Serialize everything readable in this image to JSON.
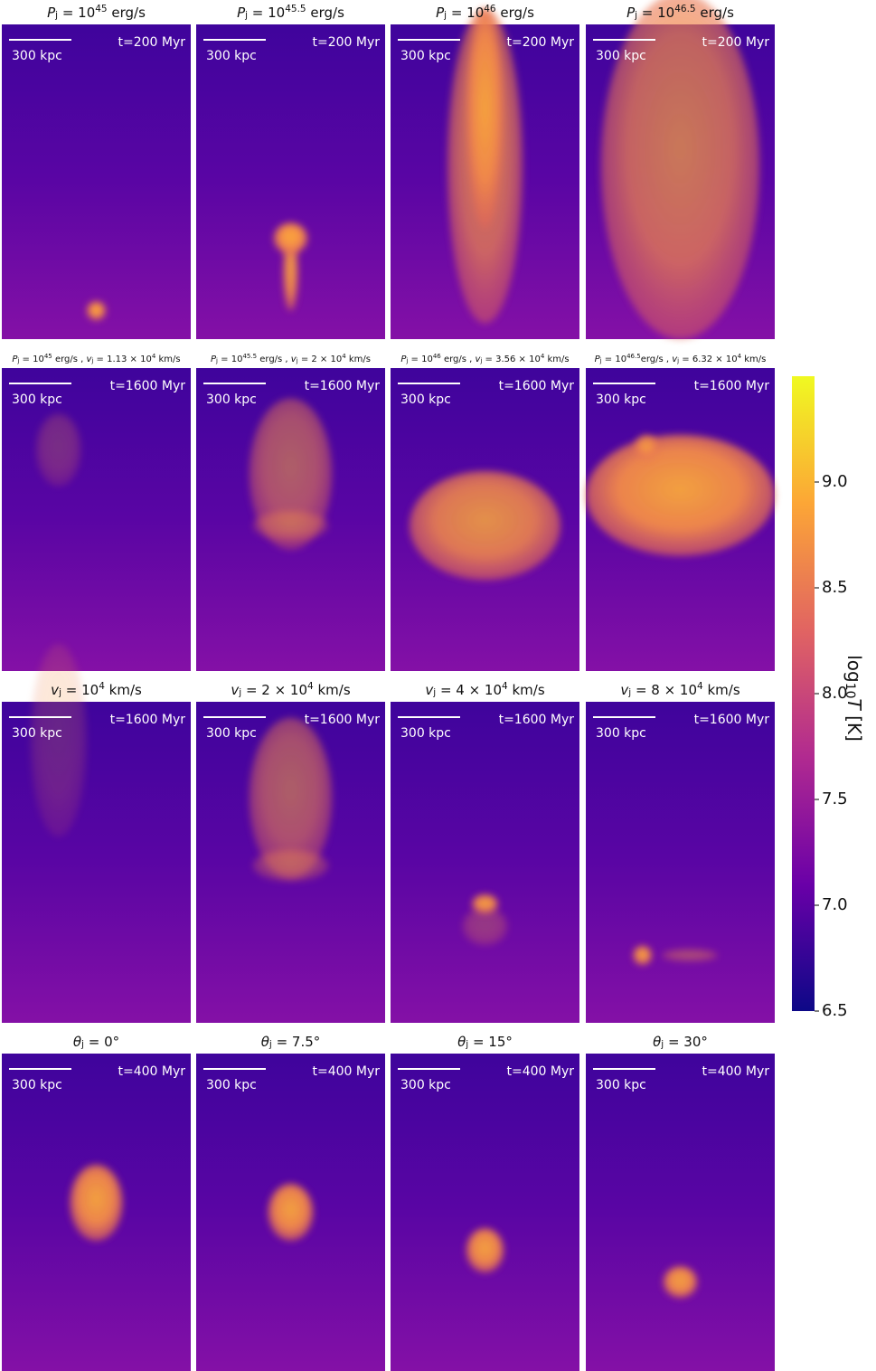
{
  "rows": [
    {
      "panels": [
        {
          "title": [
            {
              "t": "P",
              "style": "italic"
            },
            {
              "t": "j",
              "style": "sub"
            },
            {
              "t": " = 10"
            },
            {
              "t": "45",
              "style": "sup"
            },
            {
              "t": " erg/s"
            }
          ],
          "time": "t=200 Myr",
          "scale": "300 kpc"
        },
        {
          "title": [
            {
              "t": "P",
              "style": "italic"
            },
            {
              "t": "j",
              "style": "sub"
            },
            {
              "t": " = 10"
            },
            {
              "t": "45.5",
              "style": "sup"
            },
            {
              "t": " erg/s"
            }
          ],
          "time": "t=200 Myr",
          "scale": "300 kpc"
        },
        {
          "title": [
            {
              "t": "P",
              "style": "italic"
            },
            {
              "t": "j",
              "style": "sub"
            },
            {
              "t": " = 10"
            },
            {
              "t": "46",
              "style": "sup"
            },
            {
              "t": " erg/s"
            }
          ],
          "time": "t=200 Myr",
          "scale": "300 kpc"
        },
        {
          "title": [
            {
              "t": "P",
              "style": "italic"
            },
            {
              "t": "j",
              "style": "sub"
            },
            {
              "t": " = 10"
            },
            {
              "t": "46.5",
              "style": "sup"
            },
            {
              "t": " erg/s"
            }
          ],
          "time": "t=200 Myr",
          "scale": "300 kpc"
        }
      ]
    },
    {
      "panels": [
        {
          "title": [
            {
              "t": "P",
              "style": "italic"
            },
            {
              "t": "j",
              "style": "sub"
            },
            {
              "t": " = 10"
            },
            {
              "t": "45",
              "style": "sup"
            },
            {
              "t": " erg/s , "
            },
            {
              "t": "v",
              "style": "italic"
            },
            {
              "t": "j",
              "style": "sub"
            },
            {
              "t": " = 1.13 × 10"
            },
            {
              "t": "4",
              "style": "sup"
            },
            {
              "t": " km/s"
            }
          ],
          "time": "t=1600 Myr",
          "scale": "300 kpc"
        },
        {
          "title": [
            {
              "t": "P",
              "style": "italic"
            },
            {
              "t": "j",
              "style": "sub"
            },
            {
              "t": " = 10"
            },
            {
              "t": "45.5",
              "style": "sup"
            },
            {
              "t": " erg/s , "
            },
            {
              "t": "v",
              "style": "italic"
            },
            {
              "t": "j",
              "style": "sub"
            },
            {
              "t": " = 2 × 10"
            },
            {
              "t": "4",
              "style": "sup"
            },
            {
              "t": " km/s"
            }
          ],
          "time": "t=1600 Myr",
          "scale": "300 kpc"
        },
        {
          "title": [
            {
              "t": "P",
              "style": "italic"
            },
            {
              "t": "j",
              "style": "sub"
            },
            {
              "t": " = 10"
            },
            {
              "t": "46",
              "style": "sup"
            },
            {
              "t": " erg/s , "
            },
            {
              "t": "v",
              "style": "italic"
            },
            {
              "t": "j",
              "style": "sub"
            },
            {
              "t": " = 3.56 × 10"
            },
            {
              "t": "4",
              "style": "sup"
            },
            {
              "t": " km/s"
            }
          ],
          "time": "t=1600 Myr",
          "scale": "300 kpc"
        },
        {
          "title": [
            {
              "t": "P",
              "style": "italic"
            },
            {
              "t": "j",
              "style": "sub"
            },
            {
              "t": " = 10"
            },
            {
              "t": "46.5",
              "style": "sup"
            },
            {
              "t": "erg/s , "
            },
            {
              "t": "v",
              "style": "italic"
            },
            {
              "t": "j",
              "style": "sub"
            },
            {
              "t": " = 6.32 × 10"
            },
            {
              "t": "4",
              "style": "sup"
            },
            {
              "t": " km/s"
            }
          ],
          "time": "t=1600 Myr",
          "scale": "300 kpc"
        }
      ]
    },
    {
      "panels": [
        {
          "title": [
            {
              "t": "v",
              "style": "italic"
            },
            {
              "t": "j",
              "style": "sub"
            },
            {
              "t": " = 10"
            },
            {
              "t": "4",
              "style": "sup"
            },
            {
              "t": " km/s"
            }
          ],
          "time": "t=1600 Myr",
          "scale": "300 kpc"
        },
        {
          "title": [
            {
              "t": "v",
              "style": "italic"
            },
            {
              "t": "j",
              "style": "sub"
            },
            {
              "t": " = 2 × 10"
            },
            {
              "t": "4",
              "style": "sup"
            },
            {
              "t": " km/s"
            }
          ],
          "time": "t=1600 Myr",
          "scale": "300 kpc"
        },
        {
          "title": [
            {
              "t": "v",
              "style": "italic"
            },
            {
              "t": "j",
              "style": "sub"
            },
            {
              "t": " = 4 × 10"
            },
            {
              "t": "4",
              "style": "sup"
            },
            {
              "t": " km/s"
            }
          ],
          "time": "t=1600 Myr",
          "scale": "300 kpc"
        },
        {
          "title": [
            {
              "t": "v",
              "style": "italic"
            },
            {
              "t": "j",
              "style": "sub"
            },
            {
              "t": " = 8 × 10"
            },
            {
              "t": "4",
              "style": "sup"
            },
            {
              "t": " km/s"
            }
          ],
          "time": "t=1600 Myr",
          "scale": "300 kpc"
        }
      ]
    },
    {
      "panels": [
        {
          "title": [
            {
              "t": "θ",
              "style": "italic"
            },
            {
              "t": "j",
              "style": "sub"
            },
            {
              "t": " = 0°"
            }
          ],
          "time": "t=400 Myr",
          "scale": "300 kpc"
        },
        {
          "title": [
            {
              "t": "θ",
              "style": "italic"
            },
            {
              "t": "j",
              "style": "sub"
            },
            {
              "t": " = 7.5°"
            }
          ],
          "time": "t=400 Myr",
          "scale": "300 kpc"
        },
        {
          "title": [
            {
              "t": "θ",
              "style": "italic"
            },
            {
              "t": "j",
              "style": "sub"
            },
            {
              "t": " = 15°"
            }
          ],
          "time": "t=400 Myr",
          "scale": "300 kpc"
        },
        {
          "title": [
            {
              "t": "θ",
              "style": "italic"
            },
            {
              "t": "j",
              "style": "sub"
            },
            {
              "t": " = 30°"
            }
          ],
          "time": "t=400 Myr",
          "scale": "300 kpc"
        }
      ]
    }
  ],
  "colorbar": {
    "label": [
      {
        "t": "log"
      },
      {
        "t": "10",
        "style": "sub"
      },
      {
        "t": "T",
        "style": "italic"
      },
      {
        "t": " [K]"
      }
    ],
    "lim": [
      6.5,
      9.5
    ],
    "ticks": [
      6.5,
      {
        "value": 7,
        "label": "7.0"
      },
      7.5,
      {
        "value": 8,
        "label": "8.0"
      },
      8.5,
      {
        "value": 9,
        "label": "9.0"
      }
    ]
  }
}
